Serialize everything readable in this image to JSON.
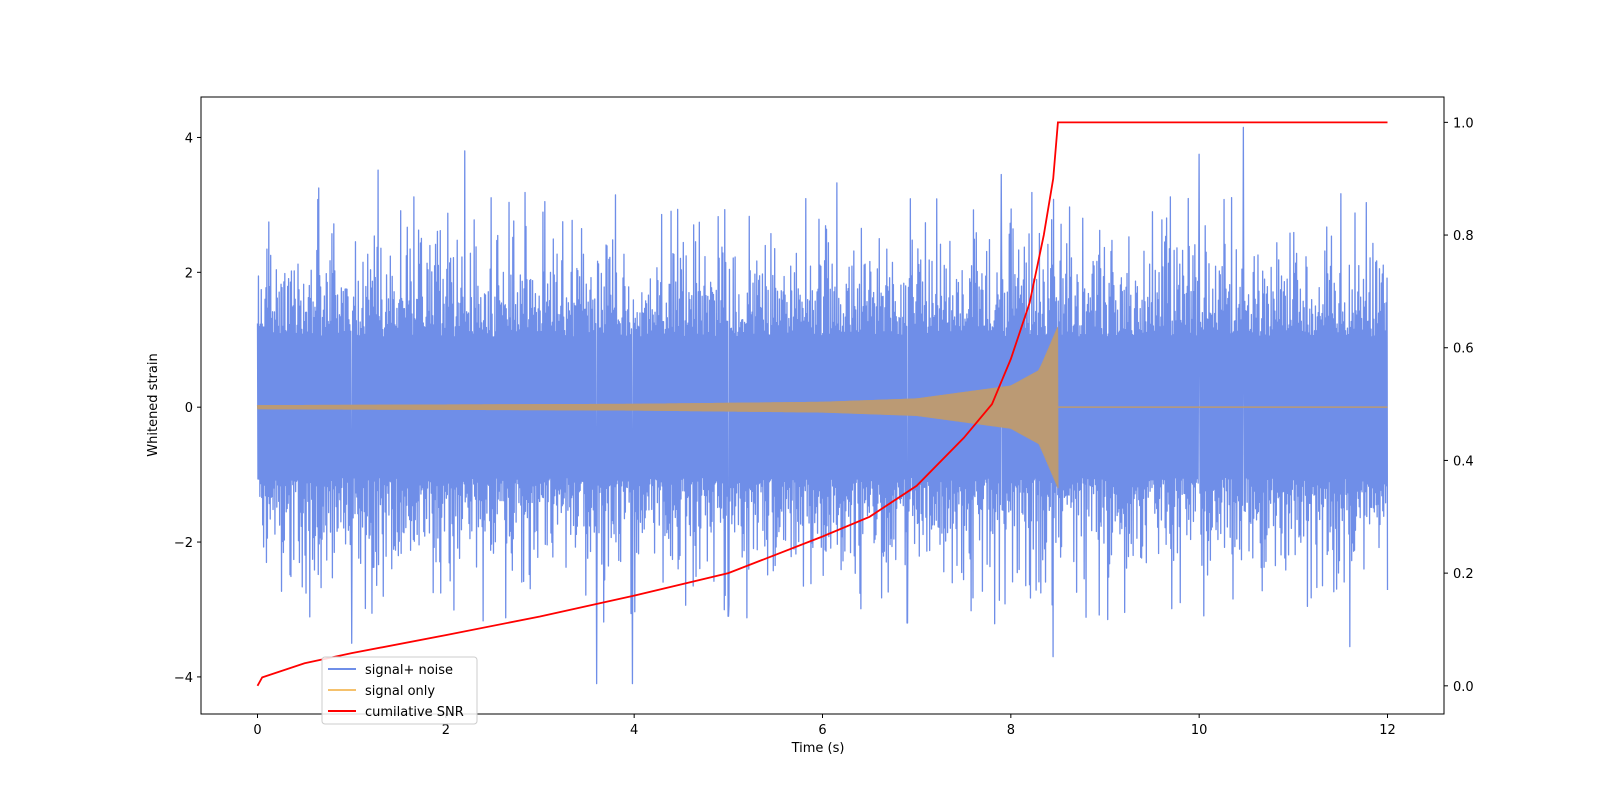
{
  "chart_data": {
    "type": "line",
    "title": "",
    "xlabel": "Time (s)",
    "ylabel": "Whitened strain",
    "ylabel_right": "",
    "xlim": [
      -0.6,
      12.6
    ],
    "ylim": [
      -4.55,
      4.6
    ],
    "ylim_right": [
      -0.05,
      1.045
    ],
    "xticks": [
      0,
      2,
      4,
      6,
      8,
      10,
      12
    ],
    "yticks": [
      -4,
      -2,
      0,
      2,
      4
    ],
    "yticks_right": [
      0.0,
      0.2,
      0.4,
      0.6,
      0.8,
      1.0
    ],
    "grid": false,
    "legend_position": "lower-left",
    "colors": {
      "signal_noise": "#6f8ee8",
      "signal_only": "#f5c16c",
      "signal_overlap": "#ba9a74",
      "cumulative_snr": "#ff0000"
    },
    "series": [
      {
        "name": "signal+ noise",
        "axis": "left",
        "kind": "noisy-band",
        "x_range": [
          0,
          12
        ],
        "band_core_abs": 1.3,
        "extreme_peaks": [
          {
            "x": 0.65,
            "y": 3.25
          },
          {
            "x": 2.2,
            "y": 3.8
          },
          {
            "x": 3.6,
            "y": -4.1
          },
          {
            "x": 3.98,
            "y": -4.1
          },
          {
            "x": 7.9,
            "y": 3.45
          },
          {
            "x": 8.45,
            "y": -3.7
          },
          {
            "x": 10.0,
            "y": 3.75
          },
          {
            "x": 10.47,
            "y": 4.15
          },
          {
            "x": 11.6,
            "y": -3.55
          },
          {
            "x": 1.0,
            "y": -3.5
          },
          {
            "x": 5.0,
            "y": -3.1
          },
          {
            "x": 6.9,
            "y": -3.2
          }
        ]
      },
      {
        "name": "signal only",
        "axis": "left",
        "kind": "chirp",
        "t_merge": 8.5,
        "envelope": [
          {
            "x": 0,
            "y": 0.03
          },
          {
            "x": 2,
            "y": 0.04
          },
          {
            "x": 4,
            "y": 0.05
          },
          {
            "x": 6,
            "y": 0.08
          },
          {
            "x": 7,
            "y": 0.13
          },
          {
            "x": 8,
            "y": 0.32
          },
          {
            "x": 8.3,
            "y": 0.55
          },
          {
            "x": 8.5,
            "y": 1.2
          }
        ],
        "post_merge_value": 0
      },
      {
        "name": "cumilative SNR",
        "axis": "right",
        "kind": "line",
        "points": [
          {
            "x": 0,
            "y": 0.0
          },
          {
            "x": 0.05,
            "y": 0.015
          },
          {
            "x": 0.5,
            "y": 0.04
          },
          {
            "x": 1,
            "y": 0.058
          },
          {
            "x": 2,
            "y": 0.09
          },
          {
            "x": 3,
            "y": 0.123
          },
          {
            "x": 4,
            "y": 0.16
          },
          {
            "x": 5,
            "y": 0.2
          },
          {
            "x": 6,
            "y": 0.265
          },
          {
            "x": 6.5,
            "y": 0.3
          },
          {
            "x": 7,
            "y": 0.355
          },
          {
            "x": 7.5,
            "y": 0.44
          },
          {
            "x": 7.8,
            "y": 0.5
          },
          {
            "x": 8,
            "y": 0.58
          },
          {
            "x": 8.2,
            "y": 0.68
          },
          {
            "x": 8.35,
            "y": 0.8
          },
          {
            "x": 8.45,
            "y": 0.9
          },
          {
            "x": 8.5,
            "y": 1.0
          },
          {
            "x": 12,
            "y": 1.0
          }
        ]
      }
    ]
  }
}
